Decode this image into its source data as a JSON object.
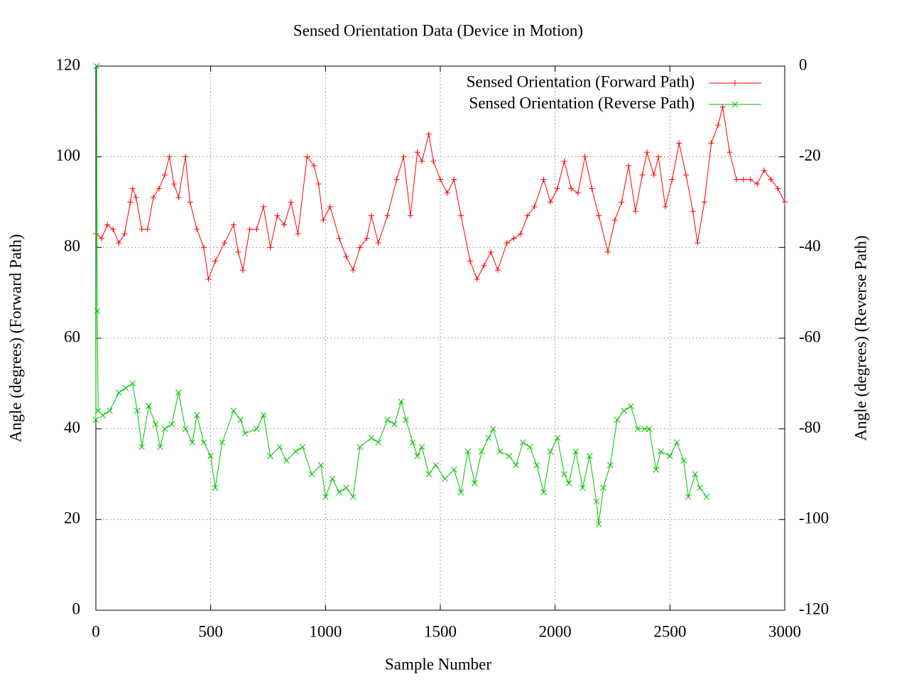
{
  "chart_data": {
    "type": "line",
    "title": "Sensed Orientation Data (Device in Motion)",
    "x_label": "Sample Number",
    "y_label": "Angle (degrees) (Forward Path)",
    "y2_label": "Angle (degrees) (Reverse Path)",
    "xlim": [
      0,
      3000
    ],
    "xticks": [
      0,
      500,
      1000,
      1500,
      2000,
      2500,
      3000
    ],
    "ylim": [
      0,
      120
    ],
    "yticks": [
      0,
      20,
      40,
      60,
      80,
      100,
      120
    ],
    "y2lim": [
      -120,
      0
    ],
    "y2ticks": [
      -120,
      -100,
      -80,
      -60,
      -40,
      -20,
      0
    ],
    "grid": true,
    "legend": "top-right",
    "series": [
      {
        "name": "Sensed Orientation (Forward Path)",
        "color": "#ff0000",
        "marker": "plus",
        "x": [
          0,
          25,
          50,
          75,
          100,
          125,
          150,
          160,
          175,
          200,
          225,
          250,
          275,
          300,
          320,
          340,
          360,
          390,
          410,
          440,
          470,
          490,
          520,
          560,
          600,
          620,
          640,
          670,
          700,
          730,
          760,
          790,
          820,
          850,
          880,
          920,
          950,
          970,
          990,
          1020,
          1060,
          1090,
          1120,
          1150,
          1180,
          1200,
          1230,
          1270,
          1310,
          1340,
          1370,
          1400,
          1420,
          1450,
          1470,
          1500,
          1530,
          1560,
          1590,
          1630,
          1660,
          1690,
          1720,
          1750,
          1790,
          1820,
          1850,
          1880,
          1910,
          1950,
          1980,
          2010,
          2040,
          2070,
          2100,
          2130,
          2160,
          2190,
          2230,
          2260,
          2290,
          2320,
          2350,
          2380,
          2400,
          2430,
          2450,
          2480,
          2510,
          2540,
          2570,
          2600,
          2620,
          2650,
          2680,
          2710,
          2730,
          2760,
          2790,
          2820,
          2850,
          2880,
          2910,
          2940,
          2970,
          3000
        ],
        "values": [
          83,
          82,
          85,
          84,
          81,
          83,
          90,
          93,
          91,
          84,
          84,
          91,
          93,
          96,
          100,
          94,
          91,
          100,
          90,
          84,
          80,
          73,
          77,
          81,
          85,
          79,
          75,
          84,
          84,
          89,
          80,
          87,
          85,
          90,
          83,
          100,
          98,
          94,
          86,
          89,
          82,
          78,
          75,
          80,
          82,
          87,
          81,
          87,
          95,
          100,
          87,
          101,
          99,
          105,
          99,
          95,
          92,
          95,
          87,
          77,
          73,
          76,
          79,
          75,
          81,
          82,
          83,
          87,
          89,
          95,
          90,
          93,
          99,
          93,
          92,
          100,
          93,
          87,
          79,
          86,
          90,
          98,
          88,
          96,
          101,
          96,
          100,
          89,
          95,
          103,
          96,
          88,
          81,
          90,
          103,
          107,
          111,
          101,
          95,
          95,
          95,
          94,
          97,
          95,
          93,
          90
        ]
      },
      {
        "name": "Sensed Orientation (Reverse Path)",
        "color": "#00c000",
        "marker": "cross",
        "axis": "y2",
        "x": [
          0,
          3,
          6,
          10,
          30,
          60,
          100,
          130,
          160,
          180,
          200,
          230,
          260,
          280,
          300,
          330,
          360,
          390,
          420,
          440,
          470,
          500,
          520,
          550,
          600,
          630,
          650,
          700,
          730,
          760,
          800,
          830,
          870,
          900,
          940,
          980,
          1000,
          1030,
          1060,
          1090,
          1120,
          1150,
          1200,
          1230,
          1270,
          1300,
          1330,
          1350,
          1380,
          1400,
          1420,
          1450,
          1480,
          1520,
          1560,
          1590,
          1620,
          1650,
          1680,
          1710,
          1730,
          1760,
          1800,
          1830,
          1860,
          1890,
          1920,
          1950,
          1980,
          2010,
          2040,
          2060,
          2090,
          2120,
          2150,
          2180,
          2190,
          2210,
          2240,
          2270,
          2300,
          2330,
          2360,
          2390,
          2410,
          2440,
          2460,
          2500,
          2530,
          2560,
          2580,
          2610,
          2630,
          2660
        ],
        "values": [
          -78,
          0,
          -54,
          -76,
          -77,
          -76,
          -72,
          -71,
          -70,
          -76,
          -84,
          -75,
          -79,
          -84,
          -80,
          -79,
          -72,
          -80,
          -83,
          -77,
          -83,
          -86,
          -93,
          -83,
          -76,
          -78,
          -81,
          -80,
          -77,
          -86,
          -84,
          -87,
          -85,
          -84,
          -90,
          -88,
          -95,
          -91,
          -94,
          -93,
          -95,
          -84,
          -82,
          -83,
          -78,
          -79,
          -74,
          -78,
          -83,
          -86,
          -84,
          -90,
          -88,
          -91,
          -89,
          -94,
          -85,
          -92,
          -85,
          -82,
          -80,
          -85,
          -86,
          -88,
          -83,
          -84,
          -88,
          -94,
          -85,
          -82,
          -90,
          -92,
          -85,
          -93,
          -86,
          -96,
          -101,
          -93,
          -88,
          -78,
          -76,
          -75,
          -80,
          -80,
          -80,
          -89,
          -85,
          -86,
          -83,
          -87,
          -95,
          -90,
          -93,
          -95
        ]
      }
    ]
  }
}
